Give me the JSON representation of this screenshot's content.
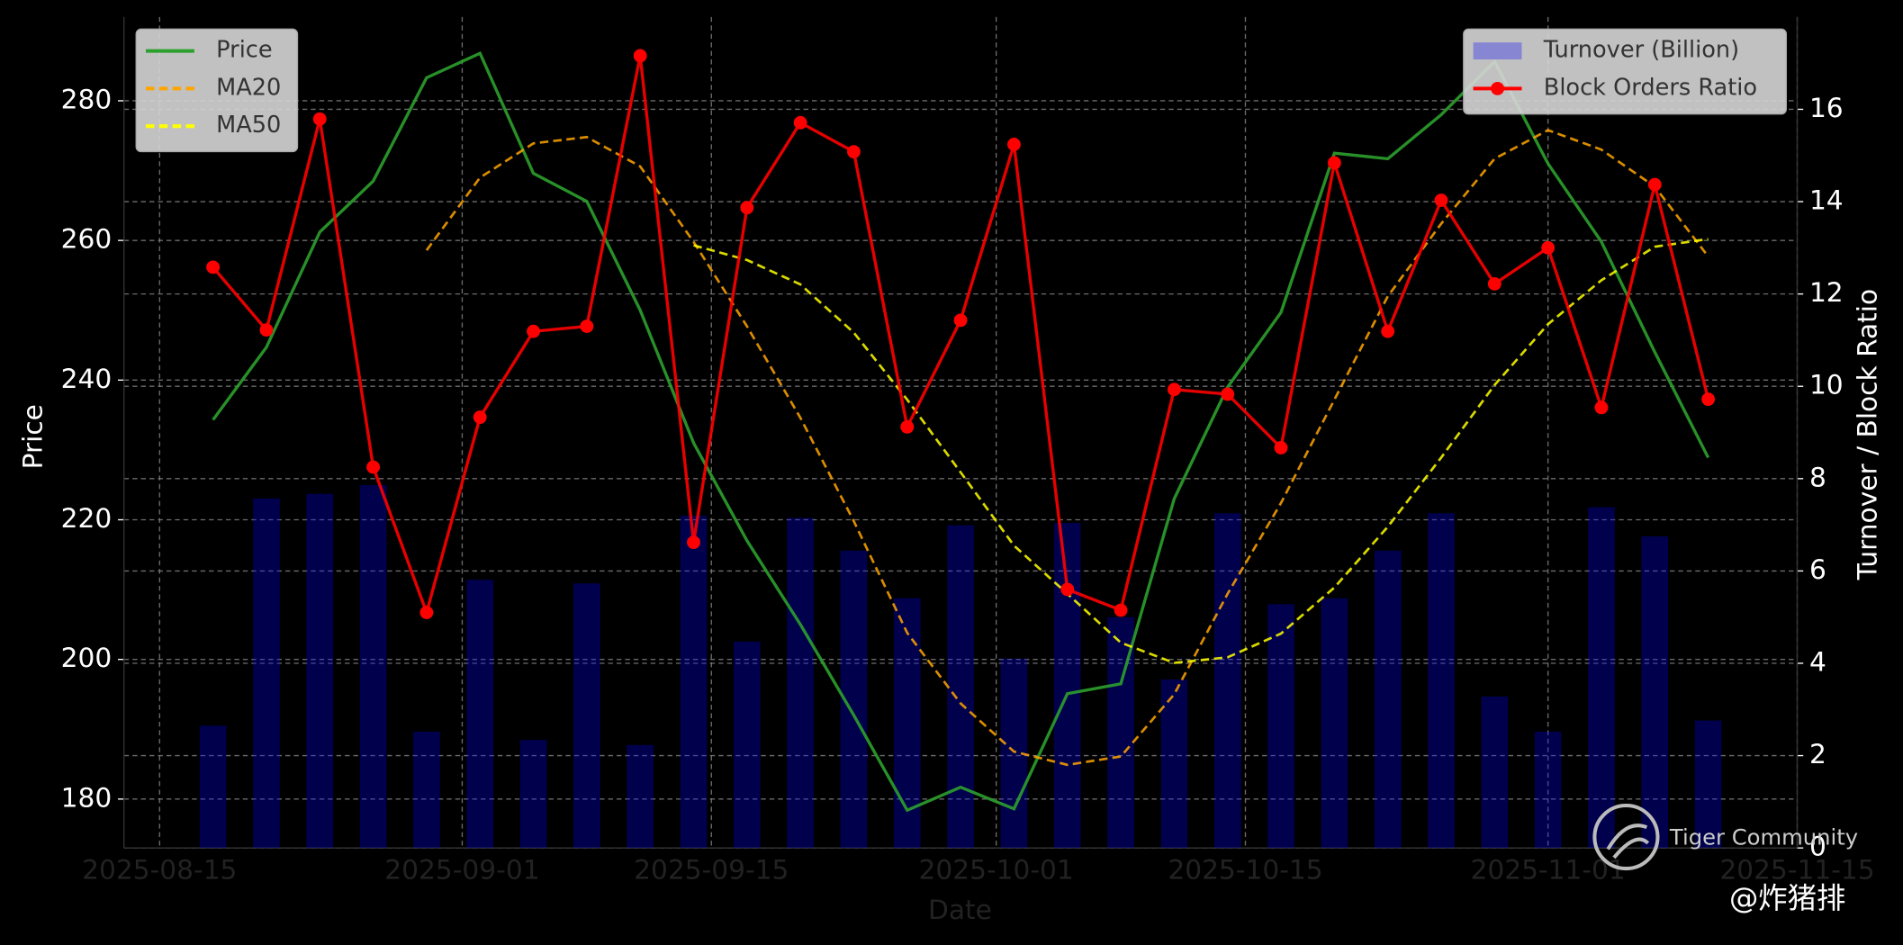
{
  "chart_data": {
    "type": "combo",
    "x_label": "Date",
    "y_label": "Price",
    "y2_label": "Turnover / Block Ratio",
    "x": [
      "2025-08-18",
      "2025-08-21",
      "2025-08-24",
      "2025-08-27",
      "2025-08-30",
      "2025-09-02",
      "2025-09-05",
      "2025-09-08",
      "2025-09-11",
      "2025-09-14",
      "2025-09-17",
      "2025-09-20",
      "2025-09-23",
      "2025-09-26",
      "2025-09-29",
      "2025-10-02",
      "2025-10-05",
      "2025-10-08",
      "2025-10-11",
      "2025-10-14",
      "2025-10-17",
      "2025-10-20",
      "2025-10-23",
      "2025-10-26",
      "2025-10-29",
      "2025-11-01",
      "2025-11-04",
      "2025-11-07",
      "2025-11-10"
    ],
    "xlim": [
      "2025-08-13",
      "2025-11-15"
    ],
    "xticks": [
      "2025-08-15",
      "2025-09-01",
      "2025-09-15",
      "2025-10-01",
      "2025-10-15",
      "2025-11-01",
      "2025-11-15"
    ],
    "ylim": [
      173,
      292
    ],
    "yticks": [
      180,
      200,
      220,
      240,
      260,
      280
    ],
    "y2lim": [
      0,
      18
    ],
    "y2ticks": [
      0,
      2,
      4,
      6,
      8,
      10,
      12,
      14,
      16
    ],
    "grid": true,
    "legend": {
      "y": "upper left",
      "y2": "upper right"
    },
    "series": [
      {
        "name": "Turnover (Billion)",
        "type": "bar",
        "axis": "y2",
        "color": "#0000ff",
        "opacity": 0.3,
        "values": [
          2.65,
          7.57,
          7.67,
          7.86,
          2.52,
          5.81,
          2.34,
          5.73,
          2.23,
          7.2,
          4.47,
          7.15,
          6.44,
          5.41,
          6.99,
          4.1,
          7.04,
          5.0,
          3.65,
          7.25,
          5.28,
          5.41,
          6.44,
          7.25,
          3.28,
          2.52,
          7.38,
          6.75,
          2.76
        ]
      },
      {
        "name": "Price",
        "type": "line",
        "axis": "y",
        "color": "#2ca02c",
        "values": [
          234.3,
          244.7,
          261.2,
          268.5,
          283.3,
          286.8,
          269.6,
          265.6,
          250,
          231,
          217,
          205,
          192,
          178.4,
          181.7,
          178.6,
          195.1,
          196.5,
          223,
          239,
          249.7,
          272.5,
          271.7,
          278,
          285.6,
          271,
          259.8,
          244,
          228.9
        ]
      },
      {
        "name": "MA20",
        "type": "line",
        "axis": "y",
        "color": "#ffa500",
        "dashed": true,
        "values": [
          null,
          null,
          null,
          null,
          258.6,
          269,
          273.9,
          274.8,
          270.6,
          259.8,
          247.7,
          234.6,
          219.8,
          203.8,
          193.7,
          186.8,
          184.9,
          186.1,
          195,
          209.4,
          222.4,
          237.2,
          252,
          262.4,
          271.7,
          275.8,
          273,
          267.7,
          257.7
        ]
      },
      {
        "name": "MA50",
        "type": "line",
        "axis": "y",
        "color": "#ffff00",
        "dashed": true,
        "values": [
          null,
          null,
          null,
          null,
          null,
          null,
          null,
          null,
          null,
          259.3,
          257.2,
          253.7,
          246.8,
          237.2,
          226.8,
          216.3,
          209.4,
          202.4,
          199.5,
          200.3,
          203.7,
          210.3,
          219,
          228.9,
          239.3,
          248,
          254.3,
          259.1,
          260.2
        ]
      },
      {
        "name": "Block Orders Ratio",
        "type": "line",
        "axis": "y2",
        "color": "#ff0000",
        "markers": true,
        "values": [
          12.58,
          11.22,
          15.79,
          8.25,
          5.1,
          9.33,
          11.19,
          11.3,
          17.16,
          6.62,
          13.87,
          15.71,
          15.08,
          9.12,
          11.43,
          15.24,
          5.6,
          5.15,
          9.93,
          9.83,
          8.67,
          14.84,
          11.19,
          14.03,
          12.22,
          13.0,
          9.54,
          14.37,
          9.72
        ]
      }
    ]
  },
  "watermark": {
    "brand": "Tiger Community",
    "author": "@炸猪排"
  }
}
